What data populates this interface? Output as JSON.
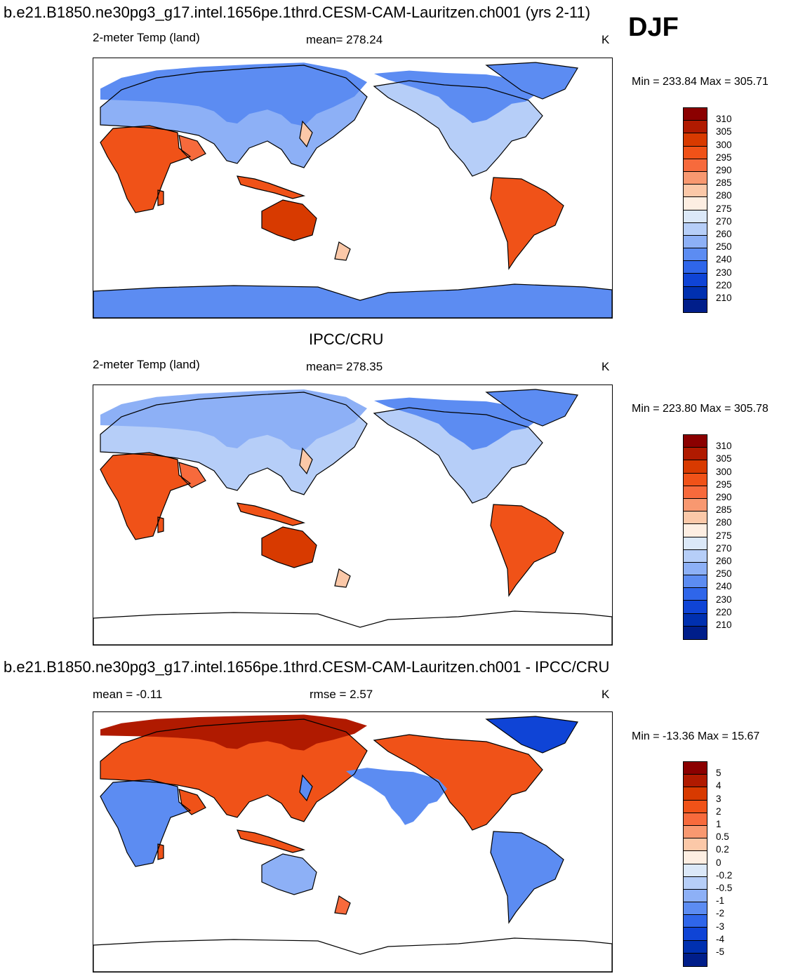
{
  "header": {
    "title": "b.e21.B1850.ne30pg3_g17.intel.1656pe.1thrd.CESM-CAM-Lauritzen.ch001 (yrs 2-11)",
    "season": "DJF"
  },
  "panels": [
    {
      "id": "model",
      "heading": "",
      "variable": "2-meter Temp (land)",
      "stat": "mean= 278.24",
      "units": "K",
      "minmax": "Min = 233.84 Max = 305.71",
      "antarctica_filled": true
    },
    {
      "id": "obs",
      "heading": "IPCC/CRU",
      "variable": "2-meter Temp (land)",
      "stat": "mean= 278.35",
      "units": "K",
      "minmax": "Min = 223.80 Max = 305.78",
      "antarctica_filled": false
    },
    {
      "id": "diff",
      "heading": "b.e21.B1850.ne30pg3_g17.intel.1656pe.1thrd.CESM-CAM-Lauritzen.ch001 - IPCC/CRU",
      "variable": "mean =  -0.11",
      "stat": "rmse =   2.57",
      "units": "K",
      "minmax": "Min = -13.36 Max =  15.67",
      "antarctica_filled": false
    }
  ],
  "colorbars": {
    "absolute": {
      "labels": [
        "310",
        "305",
        "300",
        "295",
        "290",
        "285",
        "280",
        "275",
        "270",
        "260",
        "250",
        "240",
        "230",
        "220",
        "210"
      ],
      "colors": [
        "#8b0000",
        "#b01a00",
        "#d83a00",
        "#f05218",
        "#f76a3c",
        "#f89870",
        "#fbc8a8",
        "#fdeee2",
        "#dbe8f8",
        "#b6cef8",
        "#8db0f6",
        "#5c8cf2",
        "#2f66ea",
        "#0f44d6",
        "#0030b0",
        "#001e8a"
      ]
    },
    "difference": {
      "labels": [
        "5",
        "4",
        "3",
        "2",
        "1",
        "0.5",
        "0.2",
        "0",
        "-0.2",
        "-0.5",
        "-1",
        "-2",
        "-3",
        "-4",
        "-5"
      ],
      "colors": [
        "#8b0000",
        "#b01a00",
        "#d83a00",
        "#f05218",
        "#f76a3c",
        "#f89870",
        "#fbc8a8",
        "#fdeee2",
        "#dbe8f8",
        "#b6cef8",
        "#8db0f6",
        "#5c8cf2",
        "#2f66ea",
        "#0f44d6",
        "#0030b0",
        "#001e8a"
      ]
    }
  }
}
